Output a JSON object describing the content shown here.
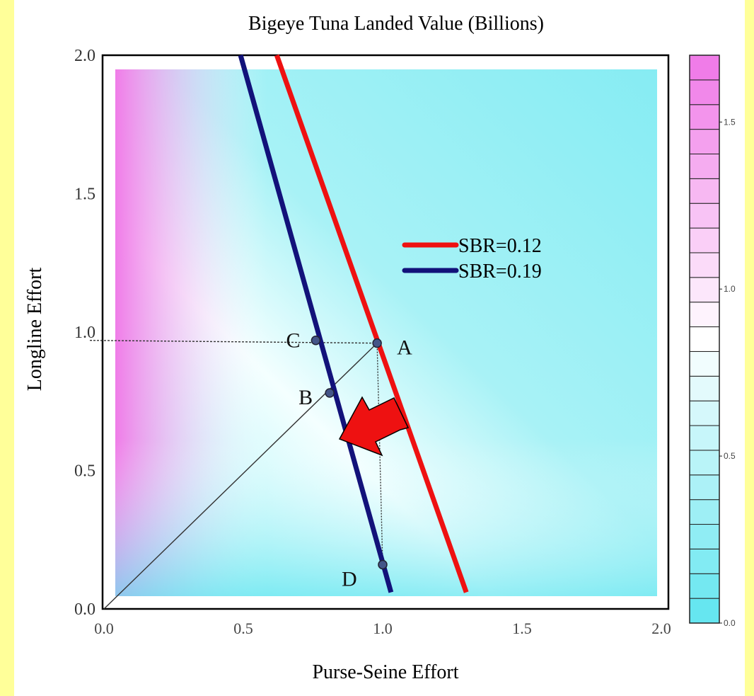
{
  "chart_data": {
    "type": "heatmap",
    "title": "Bigeye Tuna Landed Value (Billions)",
    "xlabel": "Purse-Seine Effort",
    "ylabel": "Longline Effort",
    "xlim": [
      0.0,
      2.0
    ],
    "ylim": [
      0.0,
      2.0
    ],
    "x_ticks": [
      "0.0",
      "0.5",
      "1.0",
      "1.5",
      "2.0"
    ],
    "y_ticks": [
      "0.0",
      "0.5",
      "1.0",
      "1.5",
      "2.0"
    ],
    "colorbar": {
      "range": [
        0.0,
        1.7
      ],
      "tick_labels": [
        "0.0",
        "0.5",
        "1.0",
        "1.5"
      ],
      "colors": {
        "low": "#66e6f0",
        "mid": "#ffffff",
        "high": "#f07ce8"
      }
    },
    "series": [
      {
        "name": "SBR=0.12",
        "color": "#ee1111",
        "x": [
          0.62,
          1.3
        ],
        "y": [
          2.0,
          0.06
        ]
      },
      {
        "name": "SBR=0.19",
        "color": "#12127a",
        "x": [
          0.49,
          1.03
        ],
        "y": [
          2.0,
          0.06
        ]
      }
    ],
    "points": [
      {
        "label": "A",
        "x": 0.98,
        "y": 0.96
      },
      {
        "label": "B",
        "x": 0.81,
        "y": 0.78
      },
      {
        "label": "C",
        "x": 0.76,
        "y": 0.97
      },
      {
        "label": "D",
        "x": 1.0,
        "y": 0.16
      }
    ],
    "legend_position": "center-right"
  }
}
